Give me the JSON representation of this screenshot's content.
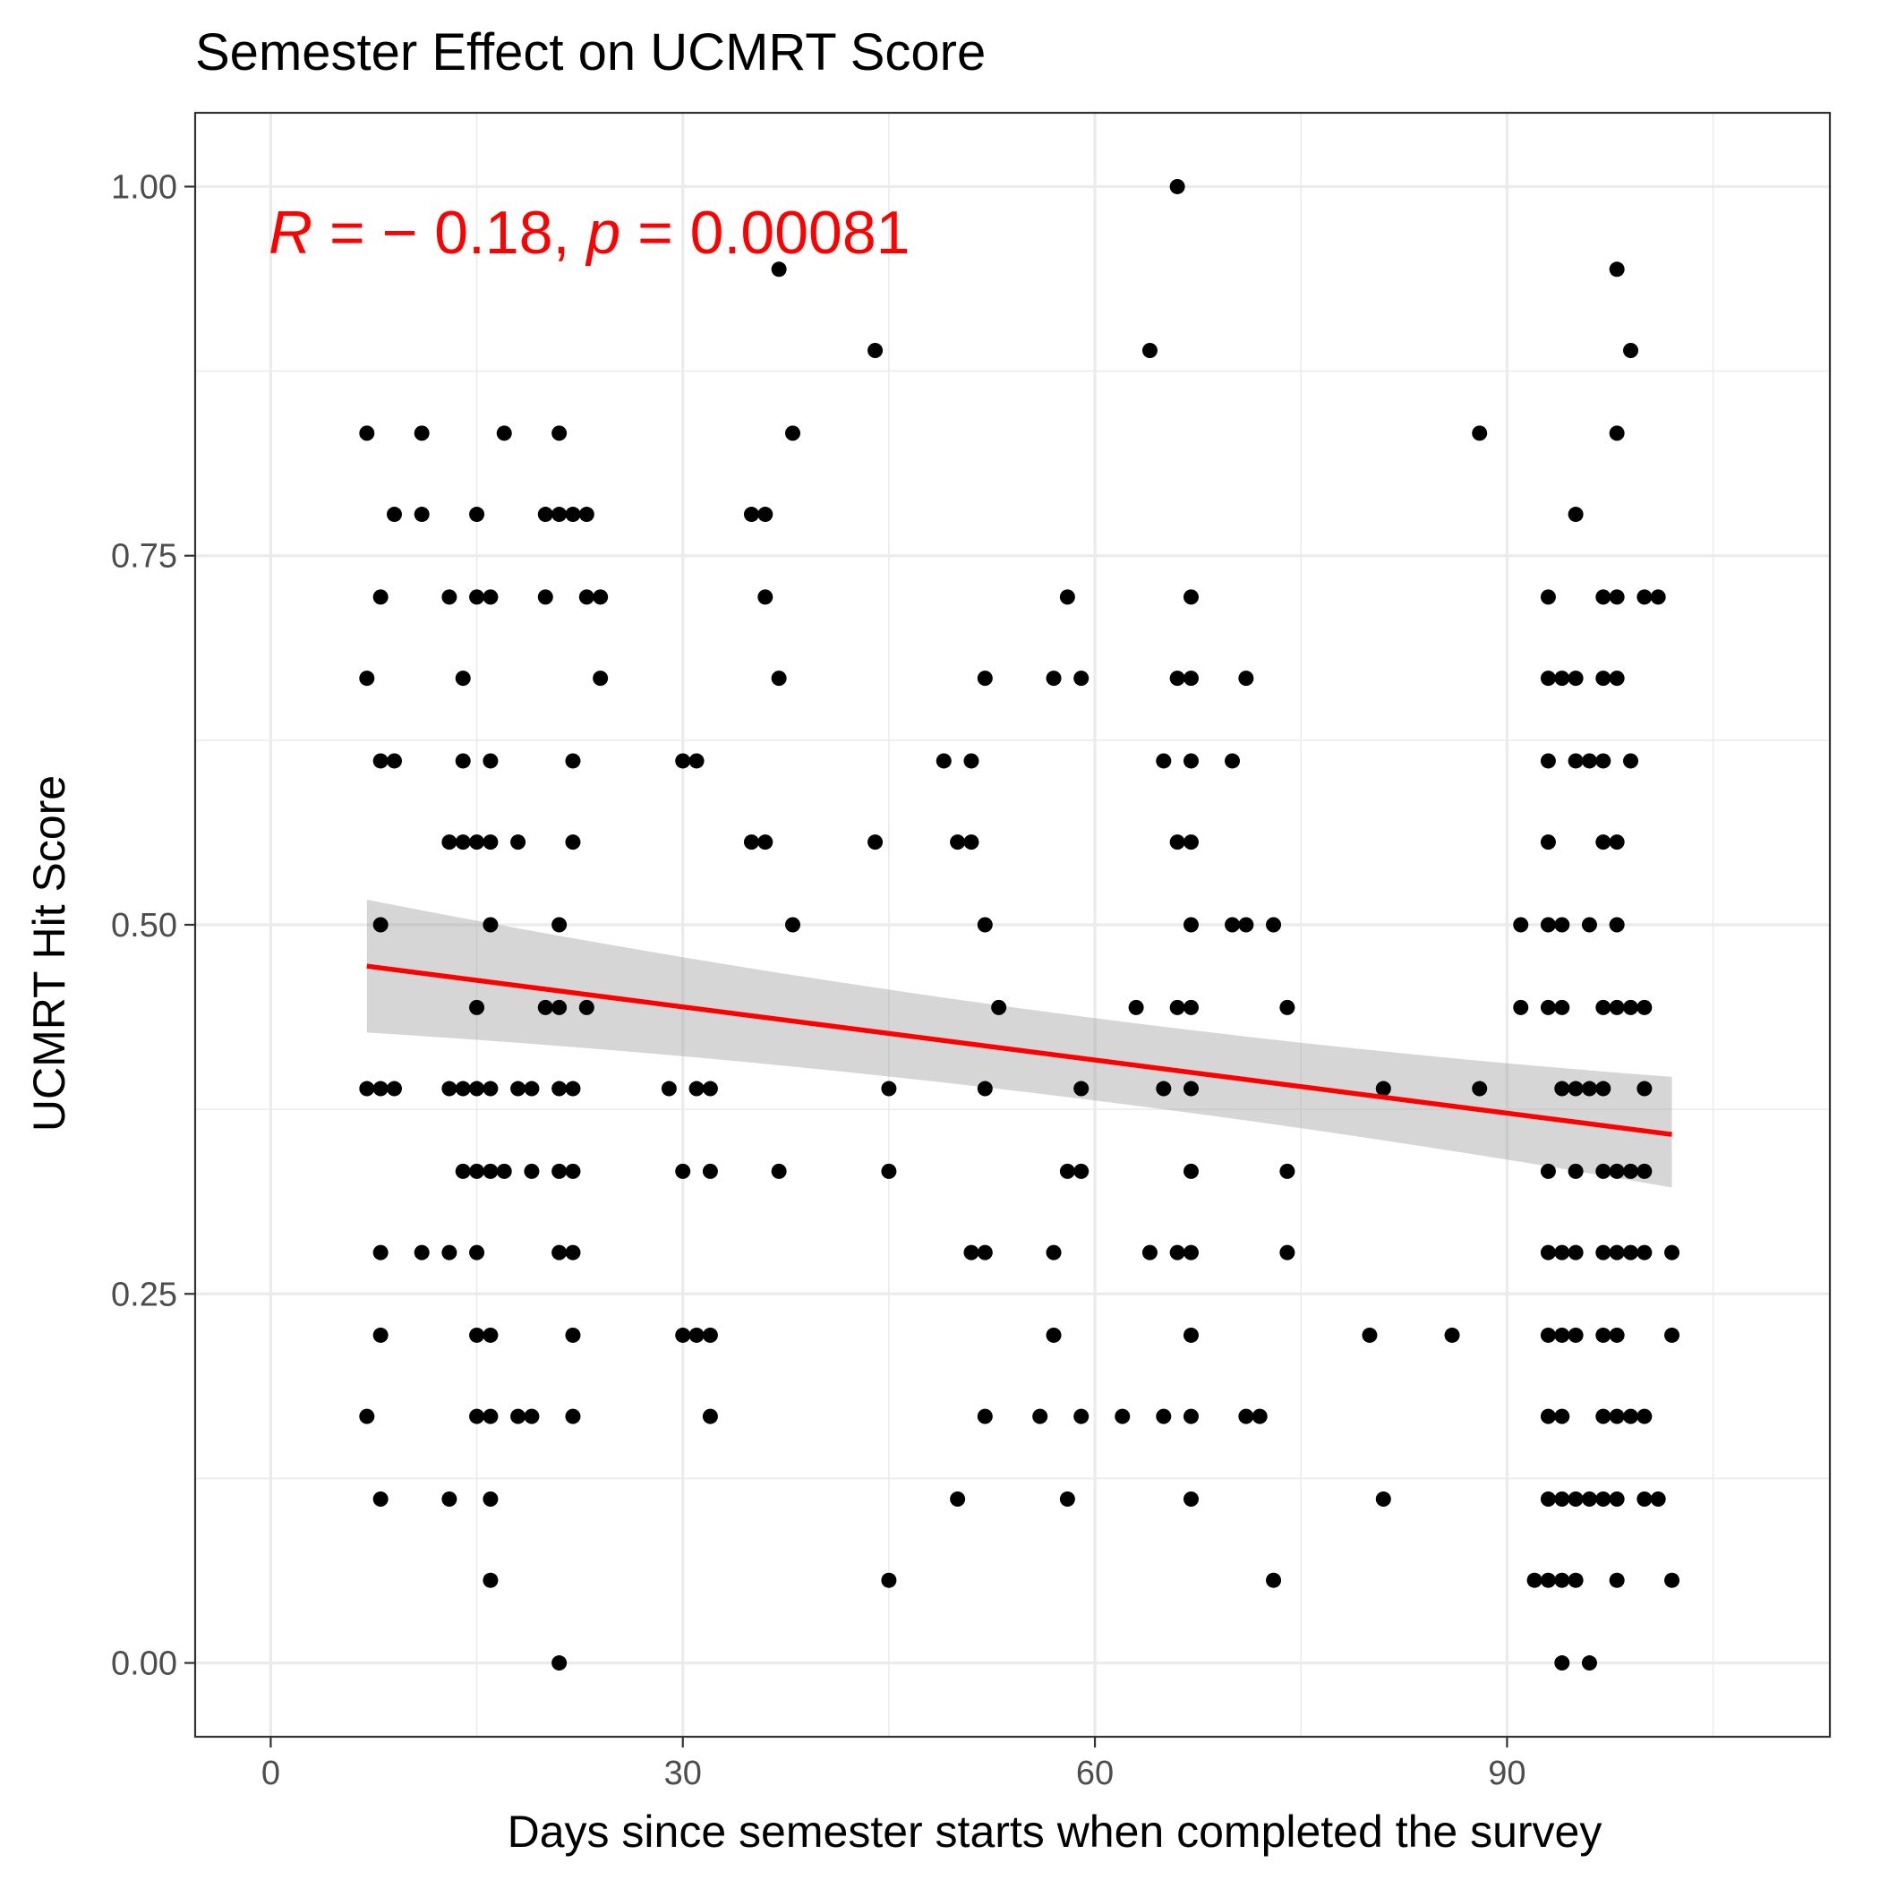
{
  "chart_data": {
    "type": "scatter",
    "title": "Semester Effect on UCMRT Score",
    "xlabel": "Days since semester starts when completed the survey",
    "ylabel": "UCMRT Hit Score",
    "xlim": [
      -5.5,
      113.5
    ],
    "ylim": [
      -0.05,
      1.05
    ],
    "x_ticks": [
      0,
      30,
      60,
      90
    ],
    "x_tick_labels": [
      "0",
      "30",
      "60",
      "90"
    ],
    "y_ticks": [
      0.0,
      0.25,
      0.5,
      0.75,
      1.0
    ],
    "y_tick_labels": [
      "0.00",
      "0.25",
      "0.50",
      "0.75",
      "1.00"
    ],
    "grid": true,
    "annotation": {
      "r_symbol": "R",
      "r_value": " = − 0.18, ",
      "p_symbol": "p",
      "p_value": " = 0.00081",
      "color": "#ff0000"
    },
    "colors": {
      "points": "#000000",
      "fit_line": "#ff0000",
      "confidence_band": "#999999",
      "panel_border": "#333333",
      "grid": "#ebebeb"
    },
    "fit": {
      "x_start": 7,
      "y_start": 0.472,
      "x_end": 102,
      "y_end": 0.358,
      "band_lower_start": 0.427,
      "band_upper_start": 0.517,
      "band_lower_end": 0.322,
      "band_upper_end": 0.397
    },
    "points": [
      [
        7,
        0.833
      ],
      [
        11,
        0.833
      ],
      [
        17,
        0.833
      ],
      [
        21,
        0.833
      ],
      [
        9,
        0.778
      ],
      [
        11,
        0.778
      ],
      [
        15,
        0.778
      ],
      [
        20,
        0.778
      ],
      [
        21,
        0.778
      ],
      [
        22,
        0.778
      ],
      [
        23,
        0.778
      ],
      [
        8,
        0.722
      ],
      [
        13,
        0.722
      ],
      [
        15,
        0.722
      ],
      [
        16,
        0.722
      ],
      [
        20,
        0.722
      ],
      [
        23,
        0.722
      ],
      [
        24,
        0.722
      ],
      [
        7,
        0.667
      ],
      [
        14,
        0.667
      ],
      [
        24,
        0.667
      ],
      [
        8,
        0.611
      ],
      [
        9,
        0.611
      ],
      [
        14,
        0.611
      ],
      [
        16,
        0.611
      ],
      [
        22,
        0.611
      ],
      [
        13,
        0.556
      ],
      [
        14,
        0.556
      ],
      [
        15,
        0.556
      ],
      [
        16,
        0.556
      ],
      [
        18,
        0.556
      ],
      [
        22,
        0.556
      ],
      [
        8,
        0.5
      ],
      [
        16,
        0.5
      ],
      [
        21,
        0.5
      ],
      [
        15,
        0.444
      ],
      [
        20,
        0.444
      ],
      [
        21,
        0.444
      ],
      [
        23,
        0.444
      ],
      [
        7,
        0.389
      ],
      [
        8,
        0.389
      ],
      [
        9,
        0.389
      ],
      [
        13,
        0.389
      ],
      [
        14,
        0.389
      ],
      [
        15,
        0.389
      ],
      [
        16,
        0.389
      ],
      [
        18,
        0.389
      ],
      [
        19,
        0.389
      ],
      [
        21,
        0.389
      ],
      [
        22,
        0.389
      ],
      [
        14,
        0.333
      ],
      [
        15,
        0.333
      ],
      [
        16,
        0.333
      ],
      [
        17,
        0.333
      ],
      [
        19,
        0.333
      ],
      [
        21,
        0.333
      ],
      [
        22,
        0.333
      ],
      [
        8,
        0.278
      ],
      [
        11,
        0.278
      ],
      [
        13,
        0.278
      ],
      [
        15,
        0.278
      ],
      [
        21,
        0.278
      ],
      [
        22,
        0.278
      ],
      [
        8,
        0.222
      ],
      [
        15,
        0.222
      ],
      [
        16,
        0.222
      ],
      [
        22,
        0.222
      ],
      [
        7,
        0.167
      ],
      [
        15,
        0.167
      ],
      [
        16,
        0.167
      ],
      [
        18,
        0.167
      ],
      [
        19,
        0.167
      ],
      [
        22,
        0.167
      ],
      [
        8,
        0.111
      ],
      [
        13,
        0.111
      ],
      [
        16,
        0.111
      ],
      [
        16,
        0.056
      ],
      [
        21,
        0.0
      ],
      [
        37,
        0.944
      ],
      [
        44,
        0.889
      ],
      [
        38,
        0.833
      ],
      [
        35,
        0.778
      ],
      [
        36,
        0.778
      ],
      [
        36,
        0.722
      ],
      [
        37,
        0.667
      ],
      [
        30,
        0.611
      ],
      [
        31,
        0.611
      ],
      [
        35,
        0.556
      ],
      [
        36,
        0.556
      ],
      [
        44,
        0.556
      ],
      [
        38,
        0.5
      ],
      [
        29,
        0.389
      ],
      [
        31,
        0.389
      ],
      [
        32,
        0.389
      ],
      [
        45,
        0.389
      ],
      [
        30,
        0.333
      ],
      [
        32,
        0.333
      ],
      [
        37,
        0.333
      ],
      [
        45,
        0.333
      ],
      [
        30,
        0.222
      ],
      [
        31,
        0.222
      ],
      [
        32,
        0.222
      ],
      [
        32,
        0.167
      ],
      [
        45,
        0.056
      ],
      [
        58,
        0.722
      ],
      [
        52,
        0.667
      ],
      [
        57,
        0.667
      ],
      [
        59,
        0.667
      ],
      [
        49,
        0.611
      ],
      [
        51,
        0.611
      ],
      [
        50,
        0.556
      ],
      [
        51,
        0.556
      ],
      [
        52,
        0.5
      ],
      [
        53,
        0.444
      ],
      [
        52,
        0.389
      ],
      [
        59,
        0.389
      ],
      [
        58,
        0.333
      ],
      [
        59,
        0.333
      ],
      [
        51,
        0.278
      ],
      [
        52,
        0.278
      ],
      [
        57,
        0.278
      ],
      [
        57,
        0.222
      ],
      [
        52,
        0.167
      ],
      [
        56,
        0.167
      ],
      [
        59,
        0.167
      ],
      [
        62,
        0.167
      ],
      [
        50,
        0.111
      ],
      [
        58,
        0.111
      ],
      [
        66,
        1.0
      ],
      [
        64,
        0.889
      ],
      [
        67,
        0.722
      ],
      [
        66,
        0.667
      ],
      [
        67,
        0.667
      ],
      [
        71,
        0.667
      ],
      [
        65,
        0.611
      ],
      [
        67,
        0.611
      ],
      [
        70,
        0.611
      ],
      [
        66,
        0.556
      ],
      [
        67,
        0.556
      ],
      [
        67,
        0.5
      ],
      [
        70,
        0.5
      ],
      [
        71,
        0.5
      ],
      [
        73,
        0.5
      ],
      [
        63,
        0.444
      ],
      [
        66,
        0.444
      ],
      [
        67,
        0.444
      ],
      [
        74,
        0.444
      ],
      [
        65,
        0.389
      ],
      [
        67,
        0.389
      ],
      [
        67,
        0.333
      ],
      [
        74,
        0.333
      ],
      [
        64,
        0.278
      ],
      [
        66,
        0.278
      ],
      [
        67,
        0.278
      ],
      [
        74,
        0.278
      ],
      [
        67,
        0.222
      ],
      [
        65,
        0.167
      ],
      [
        67,
        0.167
      ],
      [
        71,
        0.167
      ],
      [
        72,
        0.167
      ],
      [
        67,
        0.111
      ],
      [
        73,
        0.056
      ],
      [
        88,
        0.833
      ],
      [
        81,
        0.389
      ],
      [
        88,
        0.389
      ],
      [
        80,
        0.222
      ],
      [
        86,
        0.222
      ],
      [
        81,
        0.111
      ],
      [
        98,
        0.944
      ],
      [
        99,
        0.889
      ],
      [
        98,
        0.833
      ],
      [
        95,
        0.778
      ],
      [
        93,
        0.722
      ],
      [
        97,
        0.722
      ],
      [
        98,
        0.722
      ],
      [
        100,
        0.722
      ],
      [
        101,
        0.722
      ],
      [
        93,
        0.667
      ],
      [
        94,
        0.667
      ],
      [
        95,
        0.667
      ],
      [
        97,
        0.667
      ],
      [
        98,
        0.667
      ],
      [
        93,
        0.611
      ],
      [
        95,
        0.611
      ],
      [
        96,
        0.611
      ],
      [
        97,
        0.611
      ],
      [
        99,
        0.611
      ],
      [
        93,
        0.556
      ],
      [
        97,
        0.556
      ],
      [
        98,
        0.556
      ],
      [
        91,
        0.5
      ],
      [
        93,
        0.5
      ],
      [
        94,
        0.5
      ],
      [
        96,
        0.5
      ],
      [
        98,
        0.5
      ],
      [
        91,
        0.444
      ],
      [
        93,
        0.444
      ],
      [
        94,
        0.444
      ],
      [
        97,
        0.444
      ],
      [
        98,
        0.444
      ],
      [
        99,
        0.444
      ],
      [
        100,
        0.444
      ],
      [
        94,
        0.389
      ],
      [
        95,
        0.389
      ],
      [
        96,
        0.389
      ],
      [
        97,
        0.389
      ],
      [
        100,
        0.389
      ],
      [
        93,
        0.333
      ],
      [
        95,
        0.333
      ],
      [
        97,
        0.333
      ],
      [
        98,
        0.333
      ],
      [
        99,
        0.333
      ],
      [
        100,
        0.333
      ],
      [
        93,
        0.278
      ],
      [
        94,
        0.278
      ],
      [
        95,
        0.278
      ],
      [
        97,
        0.278
      ],
      [
        98,
        0.278
      ],
      [
        99,
        0.278
      ],
      [
        100,
        0.278
      ],
      [
        102,
        0.278
      ],
      [
        93,
        0.222
      ],
      [
        94,
        0.222
      ],
      [
        95,
        0.222
      ],
      [
        97,
        0.222
      ],
      [
        98,
        0.222
      ],
      [
        102,
        0.222
      ],
      [
        93,
        0.167
      ],
      [
        94,
        0.167
      ],
      [
        97,
        0.167
      ],
      [
        98,
        0.167
      ],
      [
        99,
        0.167
      ],
      [
        100,
        0.167
      ],
      [
        93,
        0.111
      ],
      [
        94,
        0.111
      ],
      [
        95,
        0.111
      ],
      [
        96,
        0.111
      ],
      [
        97,
        0.111
      ],
      [
        98,
        0.111
      ],
      [
        100,
        0.111
      ],
      [
        101,
        0.111
      ],
      [
        92,
        0.056
      ],
      [
        93,
        0.056
      ],
      [
        94,
        0.056
      ],
      [
        95,
        0.056
      ],
      [
        98,
        0.056
      ],
      [
        102,
        0.056
      ],
      [
        94,
        0.0
      ],
      [
        96,
        0.0
      ]
    ]
  }
}
